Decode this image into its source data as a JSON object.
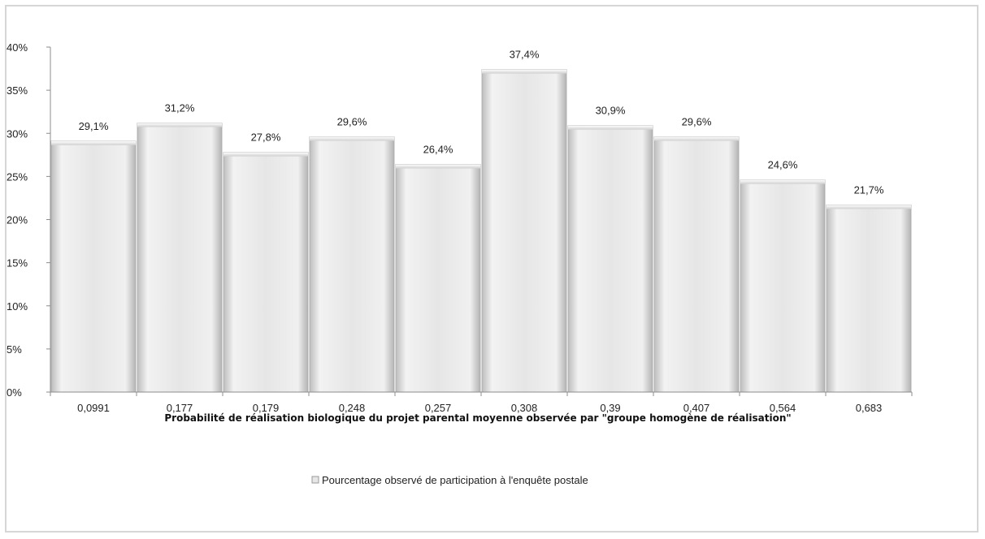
{
  "chart_data": {
    "type": "bar",
    "title": "",
    "categories": [
      "0,0991",
      "0,177",
      "0,179",
      "0,248",
      "0,257",
      "0,308",
      "0,39",
      "0,407",
      "0,564",
      "0,683"
    ],
    "series": [
      {
        "name": "Pourcentage observé de participation à l'enquête postale",
        "values": [
          29.1,
          31.2,
          27.8,
          29.6,
          26.4,
          37.4,
          30.9,
          29.6,
          24.6,
          21.7
        ],
        "labels": [
          "29,1%",
          "31,2%",
          "27,8%",
          "29,6%",
          "26,4%",
          "37,4%",
          "30,9%",
          "29,6%",
          "24,6%",
          "21,7%"
        ]
      }
    ],
    "xlabel": "Probabilité de réalisation biologique du projet parental moyenne observée par \"groupe homogène de réalisation\"",
    "ylabel": "",
    "ylim": [
      0,
      40
    ],
    "yticks": [
      0,
      5,
      10,
      15,
      20,
      25,
      30,
      35,
      40
    ],
    "ytick_labels": [
      "0%",
      "5%",
      "10%",
      "15%",
      "20%",
      "25%",
      "30%",
      "35%",
      "40%"
    ],
    "grid": false,
    "legend_position": "bottom",
    "bar_color": "#e4e4e4"
  }
}
